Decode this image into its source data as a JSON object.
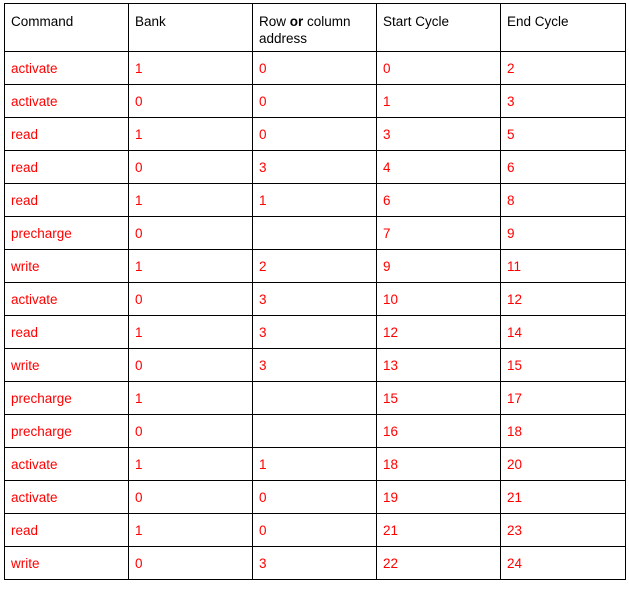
{
  "headers": {
    "command": "Command",
    "bank": "Bank",
    "address_prefix": "Row ",
    "address_or": "or",
    "address_suffix": " column address",
    "start": "Start Cycle",
    "end": "End Cycle"
  },
  "rows": [
    [
      "activate",
      "1",
      "0",
      "0",
      "2"
    ],
    [
      "activate",
      "0",
      "0",
      "1",
      "3"
    ],
    [
      "read",
      "1",
      "0",
      "3",
      "5"
    ],
    [
      "read",
      "0",
      "3",
      "4",
      "6"
    ],
    [
      "read",
      "1",
      "1",
      "6",
      "8"
    ],
    [
      "precharge",
      "0",
      "",
      "7",
      "9"
    ],
    [
      "write",
      "1",
      "2",
      "9",
      "11"
    ],
    [
      "activate",
      "0",
      "3",
      "10",
      "12"
    ],
    [
      "read",
      "1",
      "3",
      "12",
      "14"
    ],
    [
      "write",
      "0",
      "3",
      "13",
      "15"
    ],
    [
      "precharge",
      "1",
      "",
      "15",
      "17"
    ],
    [
      "precharge",
      "0",
      "",
      "16",
      "18"
    ],
    [
      "activate",
      "1",
      "1",
      "18",
      "20"
    ],
    [
      "activate",
      "0",
      "0",
      "19",
      "21"
    ],
    [
      "read",
      "1",
      "0",
      "21",
      "23"
    ],
    [
      "write",
      "0",
      "3",
      "22",
      "24"
    ]
  ],
  "colors": {
    "header_text": "#000000",
    "cell_text": "#ff0000",
    "border": "#000000"
  }
}
